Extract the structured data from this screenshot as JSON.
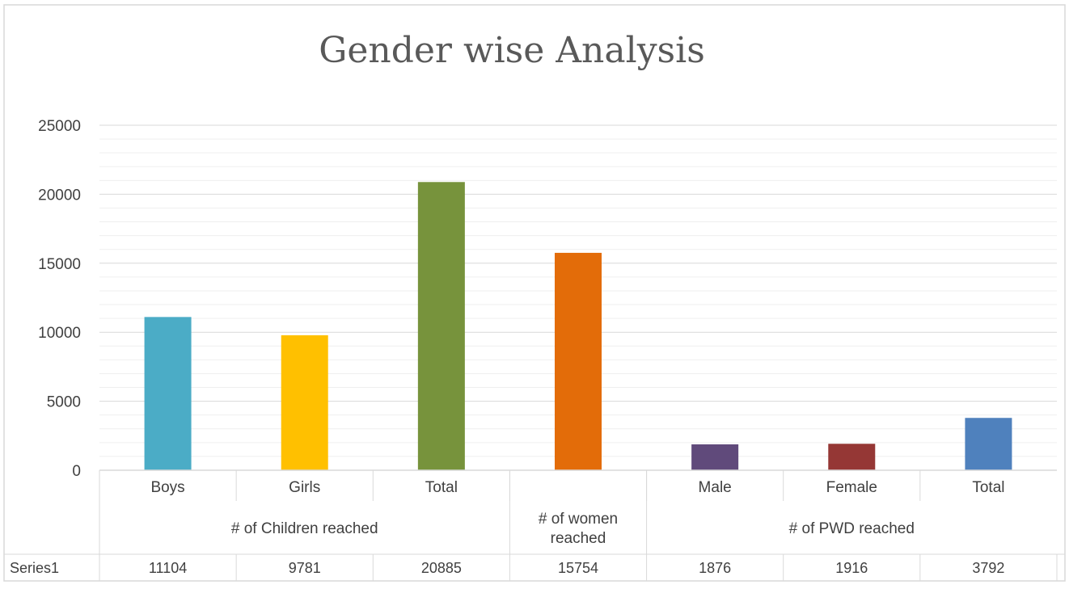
{
  "chart_data": {
    "type": "bar",
    "title": "Gender wise Analysis",
    "ylim": [
      0,
      25000
    ],
    "yticks": [
      0,
      5000,
      10000,
      15000,
      20000,
      25000
    ],
    "grid": true,
    "categories": [
      "Boys",
      "Girls",
      "Total",
      "",
      "Male",
      "Female",
      "Total"
    ],
    "groups": [
      {
        "label": "# of Children reached",
        "span": 3
      },
      {
        "label": "# of women reached",
        "span": 1
      },
      {
        "label": "# of PWD reached",
        "span": 3
      }
    ],
    "series": [
      {
        "name": "Series1",
        "values": [
          11104,
          9781,
          20885,
          15754,
          1876,
          1916,
          3792
        ]
      }
    ],
    "colors": [
      "#4BACC6",
      "#FFC000",
      "#77933C",
      "#E36C09",
      "#604A7B",
      "#953735",
      "#4F81BD"
    ]
  }
}
